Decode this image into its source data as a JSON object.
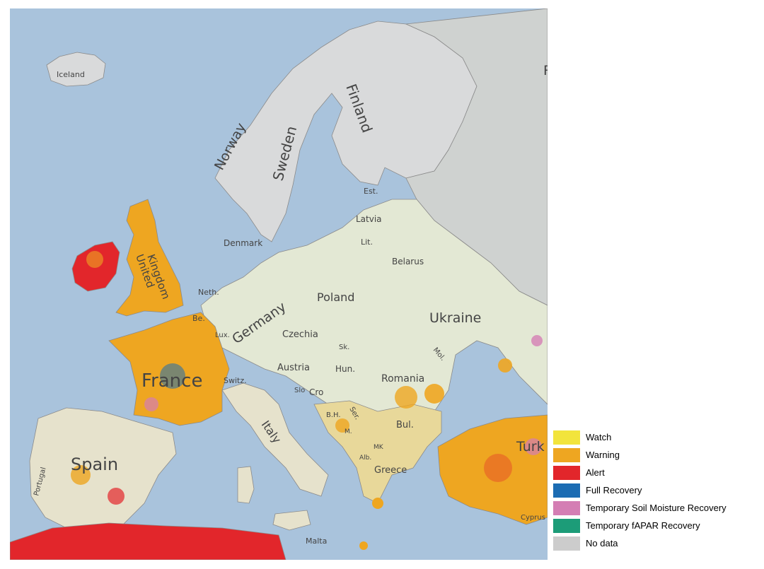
{
  "map": {
    "countries": {
      "iceland": "Iceland",
      "norway": "Norway",
      "sweden": "Sweden",
      "finland": "Finland",
      "estonia": "Est.",
      "latvia": "Latvia",
      "lithuania": "Lit.",
      "belarus": "Belarus",
      "denmark": "Denmark",
      "united_kingdom_1": "United",
      "united_kingdom_2": "Kingdom",
      "netherlands": "Neth.",
      "belgium": "Be.",
      "luxembourg": "Lux.",
      "germany": "Germany",
      "poland": "Poland",
      "czechia": "Czechia",
      "slovakia": "Sk.",
      "ukraine": "Ukraine",
      "moldova": "Mol.",
      "france": "France",
      "switzerland": "Switz.",
      "austria": "Austria",
      "hungary": "Hun.",
      "romania": "Romania",
      "slovenia": "Slo",
      "croatia": "Cro",
      "bosnia": "B.H.",
      "serbia": "Ser.",
      "montenegro": "M.",
      "bulgaria": "Bul.",
      "north_macedonia": "MK",
      "albania": "Alb.",
      "greece": "Greece",
      "italy": "Italy",
      "spain": "Spain",
      "portugal": "Portugal",
      "malta": "Malta",
      "cyprus": "Cyprus",
      "turkey": "Turk",
      "russia_partial": "R"
    }
  },
  "legend": {
    "items": [
      {
        "label": "Watch",
        "color": "#f2e43c",
        "name": "legend-watch"
      },
      {
        "label": "Warning",
        "color": "#eea621",
        "name": "legend-warning"
      },
      {
        "label": "Alert",
        "color": "#e2262b",
        "name": "legend-alert"
      },
      {
        "label": "Full Recovery",
        "color": "#1c6cb3",
        "name": "legend-full-recovery"
      },
      {
        "label": "Temporary Soil Moisture Recovery",
        "color": "#d47eb4",
        "name": "legend-soil-moisture-recovery"
      },
      {
        "label": "Temporary fAPAR Recovery",
        "color": "#1c9c78",
        "name": "legend-fapar-recovery"
      },
      {
        "label": "No data",
        "color": "#cccccc",
        "name": "legend-no-data"
      }
    ]
  }
}
